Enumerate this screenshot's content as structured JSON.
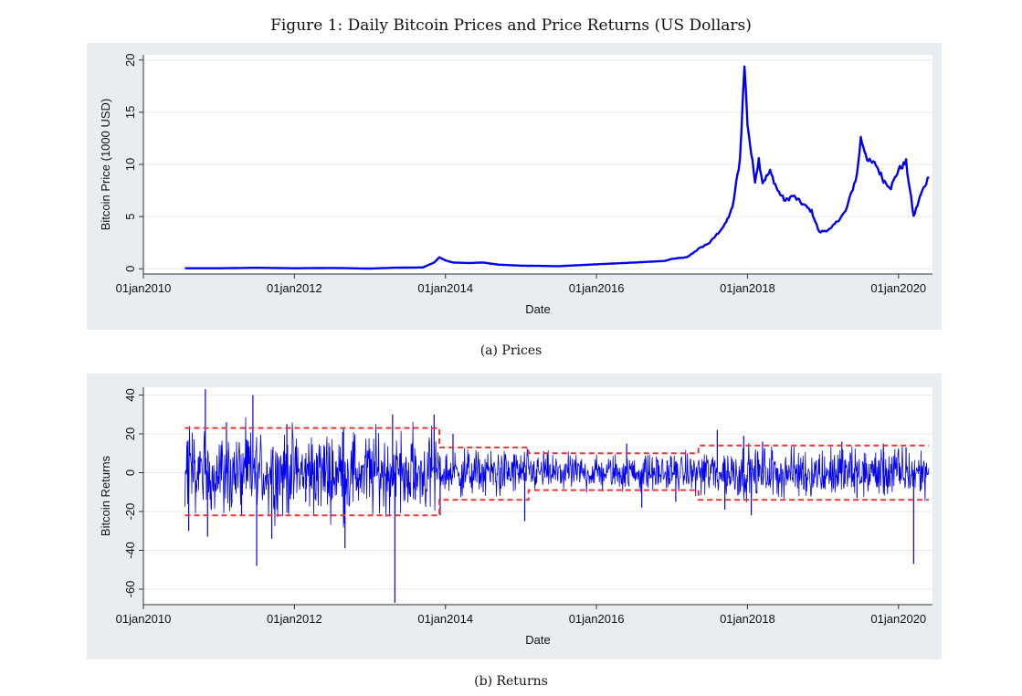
{
  "figure_title": "Figure 1: Daily Bitcoin Prices and Price Returns (US Dollars)",
  "captions": {
    "prices": "(a) Prices",
    "returns": "(b) Returns"
  },
  "colors": {
    "panel_bg": "#e8edf2",
    "plot_bg": "#ffffff",
    "grid": "#e6eaef",
    "series": "#0000ee",
    "bands": "#ee3333"
  },
  "chart_data": [
    {
      "type": "line",
      "xlabel": "Date",
      "ylabel": "Bitcoin Price (1000 USD)",
      "xticks": [
        "01jan2010",
        "01jan2012",
        "01jan2014",
        "01jan2016",
        "01jan2018",
        "01jan2020"
      ],
      "xlim": [
        2010.0,
        2020.45
      ],
      "ylim": [
        -0.5,
        20.5
      ],
      "yticks": [
        0,
        5,
        10,
        15,
        20
      ],
      "grid": true,
      "series": [
        {
          "x": [
            2010.55,
            2011.0,
            2011.5,
            2012.0,
            2012.5,
            2013.0,
            2013.3,
            2013.7,
            2013.85,
            2013.92,
            2014.0,
            2014.1,
            2014.3,
            2014.5,
            2014.7,
            2015.0,
            2015.5,
            2016.0,
            2016.5,
            2016.9,
            2017.0,
            2017.2,
            2017.35,
            2017.5,
            2017.7,
            2017.8,
            2017.9,
            2017.96,
            2018.0,
            2018.05,
            2018.1,
            2018.15,
            2018.2,
            2018.3,
            2018.4,
            2018.5,
            2018.6,
            2018.7,
            2018.85,
            2018.95,
            2019.1,
            2019.3,
            2019.45,
            2019.5,
            2019.6,
            2019.7,
            2019.8,
            2019.9,
            2020.0,
            2020.1,
            2020.2,
            2020.3,
            2020.4
          ],
          "y": [
            0.05,
            0.05,
            0.1,
            0.05,
            0.08,
            0.02,
            0.1,
            0.13,
            0.6,
            1.1,
            0.8,
            0.6,
            0.55,
            0.6,
            0.4,
            0.3,
            0.25,
            0.43,
            0.6,
            0.75,
            0.95,
            1.1,
            1.9,
            2.5,
            4.2,
            5.8,
            10.5,
            19.5,
            14.0,
            11.0,
            8.5,
            10.5,
            8.3,
            9.3,
            7.5,
            6.5,
            7.0,
            6.4,
            5.5,
            3.5,
            3.8,
            5.5,
            9.0,
            12.5,
            10.3,
            10.0,
            8.5,
            7.8,
            9.5,
            10.2,
            5.0,
            7.2,
            8.8
          ]
        }
      ]
    },
    {
      "type": "line",
      "xlabel": "Date",
      "ylabel": "Bitcoin Returns",
      "xticks": [
        "01jan2010",
        "01jan2012",
        "01jan2014",
        "01jan2016",
        "01jan2018",
        "01jan2020"
      ],
      "xlim": [
        2010.0,
        2020.45
      ],
      "ylim": [
        -68,
        44
      ],
      "yticks": [
        -60,
        -40,
        -20,
        0,
        20,
        40
      ],
      "grid": true,
      "band_segments": [
        {
          "x": [
            2010.55,
            2013.92
          ],
          "upper": 23,
          "lower": -22
        },
        {
          "x": [
            2013.92,
            2015.1
          ],
          "upper": 13,
          "lower": -14
        },
        {
          "x": [
            2015.1,
            2017.35
          ],
          "upper": 10,
          "lower": -9
        },
        {
          "x": [
            2017.35,
            2020.4
          ],
          "upper": 14,
          "lower": -14
        }
      ],
      "spikes": [
        {
          "x": 2010.58,
          "y": 16
        },
        {
          "x": 2010.6,
          "y": -30
        },
        {
          "x": 2010.75,
          "y": 11
        },
        {
          "x": 2010.82,
          "y": 43
        },
        {
          "x": 2010.85,
          "y": -33
        },
        {
          "x": 2011.1,
          "y": 26
        },
        {
          "x": 2011.3,
          "y": -22
        },
        {
          "x": 2011.45,
          "y": 40
        },
        {
          "x": 2011.5,
          "y": -48
        },
        {
          "x": 2011.7,
          "y": -34
        },
        {
          "x": 2011.9,
          "y": 25
        },
        {
          "x": 2012.15,
          "y": -15
        },
        {
          "x": 2012.65,
          "y": 23
        },
        {
          "x": 2012.67,
          "y": -39
        },
        {
          "x": 2013.3,
          "y": 30
        },
        {
          "x": 2013.33,
          "y": -67
        },
        {
          "x": 2013.6,
          "y": -14
        },
        {
          "x": 2013.85,
          "y": 30
        },
        {
          "x": 2013.93,
          "y": -22
        },
        {
          "x": 2014.1,
          "y": 20
        },
        {
          "x": 2014.5,
          "y": -10
        },
        {
          "x": 2015.05,
          "y": -25
        },
        {
          "x": 2015.3,
          "y": 11
        },
        {
          "x": 2016.4,
          "y": 15
        },
        {
          "x": 2016.6,
          "y": -18
        },
        {
          "x": 2017.05,
          "y": -15
        },
        {
          "x": 2017.6,
          "y": 22
        },
        {
          "x": 2017.7,
          "y": -19
        },
        {
          "x": 2017.95,
          "y": 19
        },
        {
          "x": 2018.05,
          "y": -22
        },
        {
          "x": 2018.2,
          "y": 16
        },
        {
          "x": 2019.25,
          "y": 16
        },
        {
          "x": 2019.45,
          "y": -13
        },
        {
          "x": 2019.8,
          "y": 15
        },
        {
          "x": 2020.1,
          "y": 13
        },
        {
          "x": 2020.2,
          "y": -47
        }
      ]
    }
  ]
}
